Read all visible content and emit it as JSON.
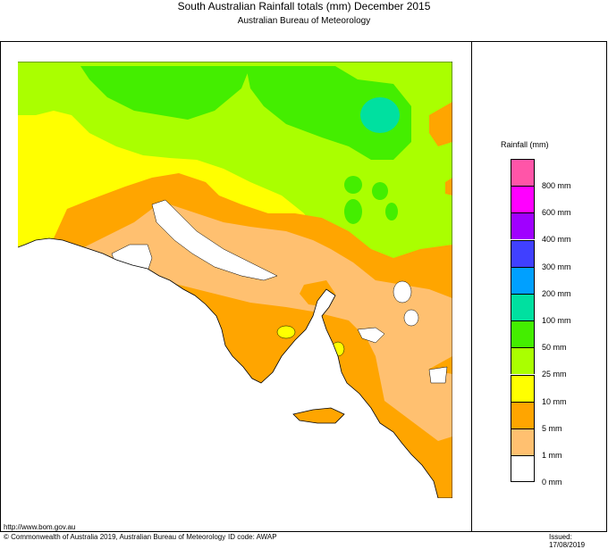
{
  "header": {
    "title": "South Australian Rainfall totals (mm)   December 2015",
    "subtitle": "Australian Bureau of Meteorology"
  },
  "legend": {
    "title": "Rainfall (mm)",
    "items": [
      {
        "label": "800 mm",
        "color": "#ff55a8"
      },
      {
        "label": "600 mm",
        "color": "#ff00ff"
      },
      {
        "label": "400 mm",
        "color": "#a000ff"
      },
      {
        "label": "300 mm",
        "color": "#4040ff"
      },
      {
        "label": "200 mm",
        "color": "#00a0ff"
      },
      {
        "label": "100 mm",
        "color": "#00e0a0"
      },
      {
        "label": "50 mm",
        "color": "#44ee00"
      },
      {
        "label": "25 mm",
        "color": "#aaff00"
      },
      {
        "label": "10 mm",
        "color": "#ffff00"
      },
      {
        "label": "5 mm",
        "color": "#ffa500"
      },
      {
        "label": "1 mm",
        "color": "#ffc070"
      },
      {
        "label": "0 mm",
        "color": "#ffffff"
      }
    ]
  },
  "footer": {
    "url": "http://www.bom.gov.au",
    "copyright": "© Commonwealth of Australia 2019, Australian Bureau of Meteorology",
    "id_code": "ID code: AWAP",
    "issued": "Issued: 17/08/2019"
  }
}
